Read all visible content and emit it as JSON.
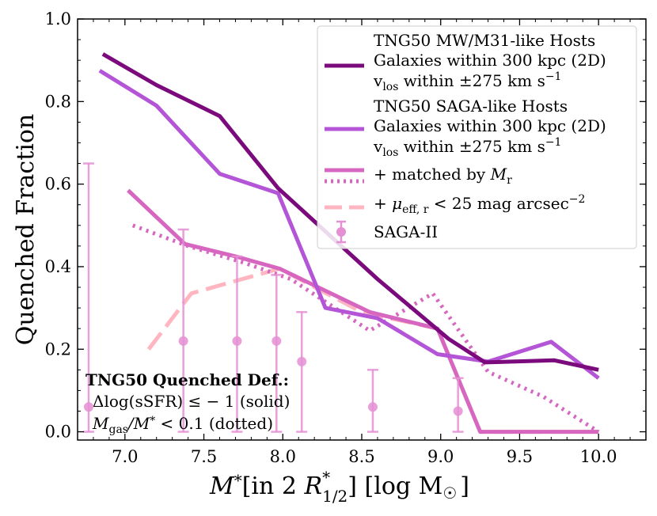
{
  "chart_data": {
    "type": "line",
    "xlabel": "M* [in 2 R*1/2] [log M☉]",
    "xlabel_parts": {
      "main": "M",
      "star": "*",
      "bracket1": "[in 2 ",
      "r": "R",
      "r_sup": "*",
      "r_sub": "1/2",
      "bracket2": "] [log M",
      "sun": "☉",
      "end": "]"
    },
    "ylabel": "Quenched Fraction",
    "xlim": [
      6.7,
      10.3
    ],
    "ylim": [
      -0.02,
      1.0
    ],
    "x_ticks": [
      7.0,
      7.5,
      8.0,
      8.5,
      9.0,
      9.5,
      10.0
    ],
    "x_tick_labels": [
      "7.0",
      "7.5",
      "8.0",
      "8.5",
      "9.0",
      "9.5",
      "10.0"
    ],
    "y_ticks": [
      0.0,
      0.2,
      0.4,
      0.6,
      0.8,
      1.0
    ],
    "y_tick_labels": [
      "0.0",
      "0.2",
      "0.4",
      "0.6",
      "0.8",
      "1.0"
    ],
    "colors": {
      "mw": "#7b0a7d",
      "saga": "#b454d6",
      "matched": "#d666c0",
      "mu": "#ffb6c1",
      "sagaii": "#e58fd4"
    },
    "series": [
      {
        "name": "TNG50 MW/M31-like Hosts",
        "key": "mw",
        "style": "solid",
        "x": [
          6.86,
          7.2,
          7.6,
          7.97,
          8.6,
          9.05,
          9.28,
          9.72,
          10.0
        ],
        "y": [
          0.915,
          0.84,
          0.765,
          0.59,
          0.37,
          0.225,
          0.168,
          0.173,
          0.15
        ]
      },
      {
        "name": "TNG50 SAGA-like Hosts",
        "key": "saga",
        "style": "solid",
        "x": [
          6.84,
          7.2,
          7.6,
          7.97,
          8.27,
          8.6,
          8.98,
          9.3,
          9.7,
          10.0
        ],
        "y": [
          0.875,
          0.79,
          0.625,
          0.578,
          0.3,
          0.275,
          0.188,
          0.17,
          0.218,
          0.13
        ]
      },
      {
        "name": "+ matched by Mr",
        "key": "matched",
        "style": "solid",
        "x": [
          7.02,
          7.38,
          7.7,
          7.98,
          8.55,
          8.98,
          9.25,
          9.6,
          10.0
        ],
        "y": [
          0.585,
          0.455,
          0.425,
          0.395,
          0.29,
          0.25,
          0.0,
          0.0,
          0.0
        ]
      },
      {
        "name": "+ matched by Mr (dotted)",
        "key": "matched",
        "style": "dotted",
        "x": [
          7.05,
          7.4,
          7.75,
          8.05,
          8.55,
          8.95,
          9.3,
          9.65,
          10.0
        ],
        "y": [
          0.5,
          0.45,
          0.41,
          0.37,
          0.245,
          0.335,
          0.145,
          0.085,
          0.0
        ]
      },
      {
        "name": "+ μeff,r < 25 mag arcsec−2",
        "key": "mu",
        "style": "dashed",
        "x": [
          7.15,
          7.42,
          7.65,
          7.98,
          8.5,
          8.98,
          9.25,
          10.0
        ],
        "y": [
          0.2,
          0.335,
          0.36,
          0.395,
          0.29,
          0.25,
          0.0,
          0.0
        ]
      }
    ],
    "sagaii": {
      "name": "SAGA-II",
      "points": [
        {
          "x": 6.77,
          "y": 0.06,
          "lo": 0.0,
          "hi": 0.65
        },
        {
          "x": 7.37,
          "y": 0.22,
          "lo": 0.0,
          "hi": 0.49
        },
        {
          "x": 7.71,
          "y": 0.22,
          "lo": 0.0,
          "hi": 0.425
        },
        {
          "x": 7.96,
          "y": 0.22,
          "lo": 0.0,
          "hi": 0.38
        },
        {
          "x": 8.12,
          "y": 0.17,
          "lo": 0.0,
          "hi": 0.29
        },
        {
          "x": 8.57,
          "y": 0.06,
          "lo": 0.0,
          "hi": 0.15
        },
        {
          "x": 9.11,
          "y": 0.05,
          "lo": 0.0,
          "hi": 0.13
        }
      ]
    },
    "legend": {
      "placement": "top-right",
      "mw_lines": [
        "TNG50 MW/M31-like Hosts",
        "Galaxies within 300 kpc (2D)",
        "v",
        "los",
        " within ±275 km s",
        "−1"
      ],
      "saga_lines": [
        "TNG50 SAGA-like Hosts",
        "Galaxies within 300 kpc (2D)",
        "v",
        "los",
        " within ±275 km s",
        "−1"
      ],
      "matched": [
        "+ matched by ",
        "M",
        "r"
      ],
      "mu": [
        "+ ",
        "μ",
        "eff, r",
        " < 25 mag arcsec",
        "−2"
      ],
      "sagaii": "SAGA-II"
    },
    "annotation": {
      "title": "TNG50 Quenched Def.:",
      "line1": "Δlog(sSFR) ≤ − 1 (solid)",
      "line2_a": "M",
      "line2_b": "gas",
      "line2_c": "/M",
      "line2_d": "*",
      "line2_e": " < 0.1 (dotted)"
    }
  }
}
